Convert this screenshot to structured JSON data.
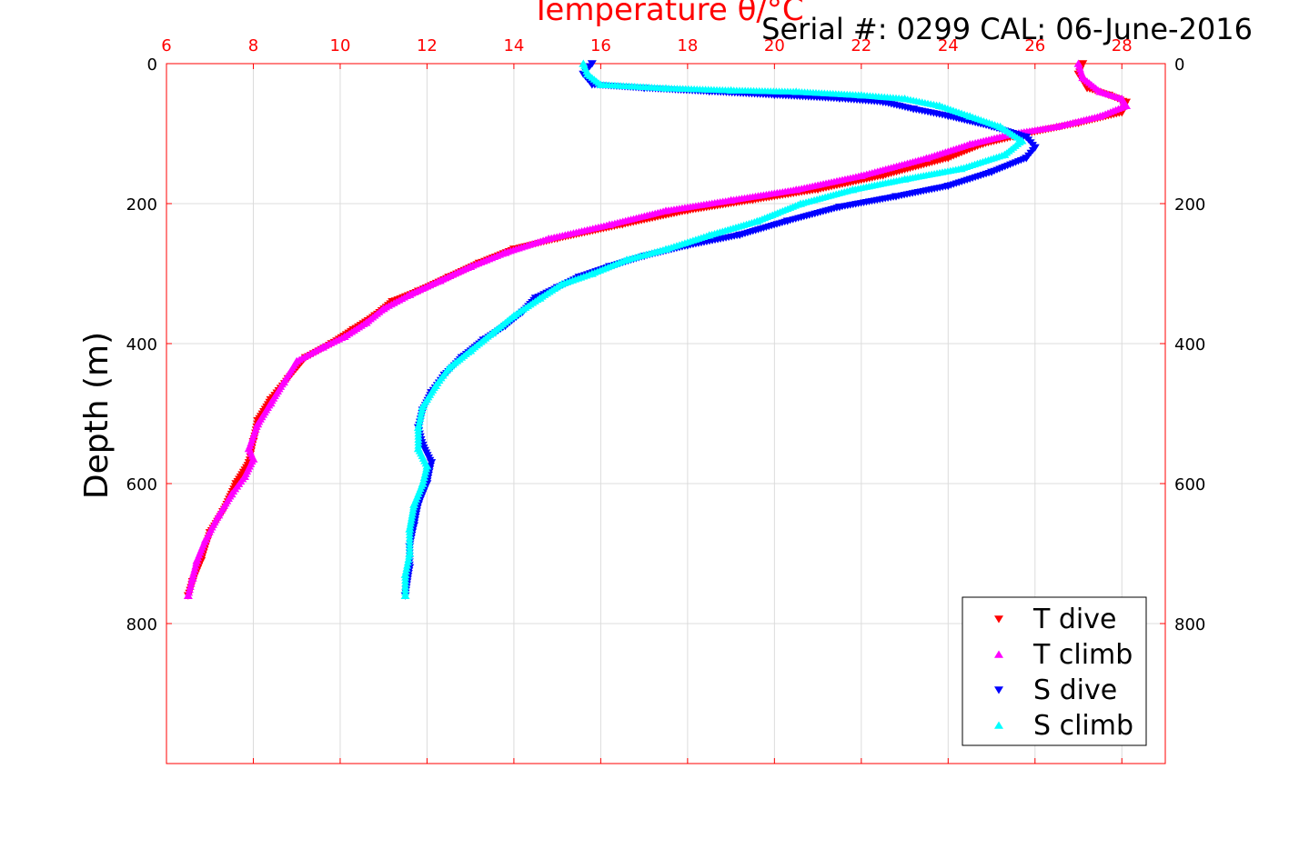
{
  "chart_data": {
    "type": "scatter",
    "title": "Temperature θ/°C",
    "annotation": "Serial #: 0299 CAL: 06-June-2016",
    "ylabel": "Depth (m)",
    "xlim": [
      6,
      29
    ],
    "ylim": [
      0,
      1000
    ],
    "y_reversed": true,
    "x_axis_position": "top",
    "x_ticks": [
      6,
      8,
      10,
      12,
      14,
      16,
      18,
      20,
      22,
      24,
      26,
      28
    ],
    "y_ticks": [
      0,
      200,
      400,
      600,
      800
    ],
    "grid": true,
    "legend_position": "bottom-right",
    "colors": {
      "axis": "#ff0000",
      "grid": "#dcdcdc",
      "T dive": "#ff0000",
      "T climb": "#ff00ff",
      "S dive": "#0000ff",
      "S climb": "#00ffff"
    },
    "series": [
      {
        "name": "T dive",
        "marker": "triangle-down",
        "points": [
          [
            27.1,
            0
          ],
          [
            27.0,
            15
          ],
          [
            27.2,
            35
          ],
          [
            27.7,
            45
          ],
          [
            28.1,
            55
          ],
          [
            28.0,
            70
          ],
          [
            27.0,
            85
          ],
          [
            25.8,
            100
          ],
          [
            24.8,
            115
          ],
          [
            24.0,
            135
          ],
          [
            22.5,
            160
          ],
          [
            21.0,
            180
          ],
          [
            19.5,
            195
          ],
          [
            18.0,
            210
          ],
          [
            16.5,
            230
          ],
          [
            15.0,
            250
          ],
          [
            14.0,
            265
          ],
          [
            13.2,
            285
          ],
          [
            12.5,
            305
          ],
          [
            11.8,
            325
          ],
          [
            11.2,
            340
          ],
          [
            10.8,
            360
          ],
          [
            10.3,
            380
          ],
          [
            9.8,
            400
          ],
          [
            9.2,
            420
          ],
          [
            8.8,
            450
          ],
          [
            8.4,
            480
          ],
          [
            8.1,
            510
          ],
          [
            8.0,
            540
          ],
          [
            7.9,
            570
          ],
          [
            7.6,
            600
          ],
          [
            7.3,
            640
          ],
          [
            7.0,
            670
          ],
          [
            6.8,
            710
          ],
          [
            6.6,
            740
          ],
          [
            6.5,
            760
          ]
        ]
      },
      {
        "name": "T climb",
        "marker": "triangle-up",
        "points": [
          [
            27.0,
            0
          ],
          [
            27.1,
            20
          ],
          [
            27.5,
            40
          ],
          [
            28.0,
            50
          ],
          [
            28.1,
            60
          ],
          [
            27.5,
            75
          ],
          [
            26.5,
            90
          ],
          [
            25.5,
            100
          ],
          [
            24.5,
            115
          ],
          [
            23.5,
            135
          ],
          [
            22.0,
            160
          ],
          [
            20.5,
            180
          ],
          [
            19.0,
            195
          ],
          [
            17.5,
            210
          ],
          [
            16.2,
            230
          ],
          [
            14.8,
            250
          ],
          [
            13.8,
            270
          ],
          [
            13.0,
            290
          ],
          [
            12.3,
            310
          ],
          [
            11.6,
            330
          ],
          [
            11.0,
            350
          ],
          [
            10.6,
            370
          ],
          [
            10.1,
            390
          ],
          [
            9.6,
            405
          ],
          [
            9.0,
            425
          ],
          [
            8.7,
            455
          ],
          [
            8.4,
            485
          ],
          [
            8.1,
            515
          ],
          [
            7.9,
            550
          ],
          [
            8.0,
            565
          ],
          [
            7.8,
            590
          ],
          [
            7.5,
            615
          ],
          [
            7.2,
            645
          ],
          [
            6.9,
            680
          ],
          [
            6.7,
            710
          ],
          [
            6.6,
            735
          ],
          [
            6.5,
            760
          ]
        ]
      },
      {
        "name": "S dive",
        "marker": "triangle-down",
        "points": [
          [
            15.8,
            0
          ],
          [
            15.6,
            15
          ],
          [
            15.8,
            30
          ],
          [
            17.0,
            35
          ],
          [
            18.5,
            40
          ],
          [
            20.0,
            45
          ],
          [
            21.5,
            50
          ],
          [
            22.5,
            55
          ],
          [
            23.2,
            65
          ],
          [
            24.0,
            75
          ],
          [
            25.0,
            90
          ],
          [
            25.8,
            105
          ],
          [
            26.0,
            120
          ],
          [
            25.8,
            135
          ],
          [
            25.0,
            155
          ],
          [
            24.0,
            175
          ],
          [
            22.8,
            190
          ],
          [
            21.5,
            205
          ],
          [
            20.3,
            225
          ],
          [
            19.2,
            245
          ],
          [
            18.0,
            260
          ],
          [
            17.0,
            275
          ],
          [
            16.2,
            290
          ],
          [
            15.5,
            305
          ],
          [
            15.0,
            320
          ],
          [
            14.5,
            335
          ],
          [
            14.2,
            355
          ],
          [
            13.8,
            375
          ],
          [
            13.3,
            395
          ],
          [
            12.8,
            420
          ],
          [
            12.4,
            445
          ],
          [
            12.1,
            470
          ],
          [
            11.9,
            495
          ],
          [
            11.8,
            520
          ],
          [
            11.9,
            545
          ],
          [
            12.1,
            570
          ],
          [
            12.0,
            600
          ],
          [
            11.8,
            630
          ],
          [
            11.7,
            660
          ],
          [
            11.6,
            690
          ],
          [
            11.6,
            720
          ],
          [
            11.5,
            760
          ]
        ]
      },
      {
        "name": "S climb",
        "marker": "triangle-up",
        "points": [
          [
            15.6,
            0
          ],
          [
            15.7,
            15
          ],
          [
            16.0,
            30
          ],
          [
            17.5,
            35
          ],
          [
            19.0,
            38
          ],
          [
            20.5,
            40
          ],
          [
            22.0,
            45
          ],
          [
            23.0,
            50
          ],
          [
            23.8,
            60
          ],
          [
            24.5,
            75
          ],
          [
            25.2,
            90
          ],
          [
            25.7,
            110
          ],
          [
            25.3,
            130
          ],
          [
            24.3,
            150
          ],
          [
            23.0,
            165
          ],
          [
            21.8,
            180
          ],
          [
            20.6,
            200
          ],
          [
            19.6,
            225
          ],
          [
            18.5,
            245
          ],
          [
            17.5,
            265
          ],
          [
            16.6,
            280
          ],
          [
            15.8,
            300
          ],
          [
            15.1,
            315
          ],
          [
            14.6,
            335
          ],
          [
            14.0,
            360
          ],
          [
            13.5,
            385
          ],
          [
            13.0,
            410
          ],
          [
            12.5,
            435
          ],
          [
            12.2,
            460
          ],
          [
            11.9,
            490
          ],
          [
            11.8,
            520
          ],
          [
            11.8,
            550
          ],
          [
            12.0,
            575
          ],
          [
            11.9,
            600
          ],
          [
            11.7,
            630
          ],
          [
            11.6,
            665
          ],
          [
            11.6,
            700
          ],
          [
            11.5,
            730
          ],
          [
            11.5,
            760
          ]
        ]
      }
    ]
  }
}
